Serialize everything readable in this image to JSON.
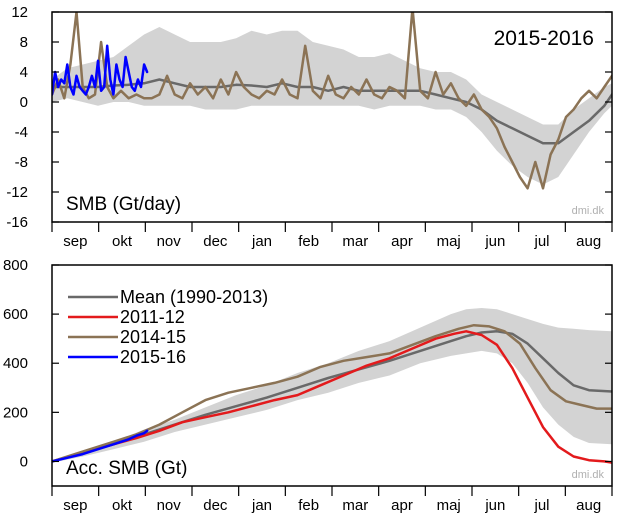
{
  "chart_data": [
    {
      "type": "line",
      "title": "",
      "ylabel": "",
      "xlabel": "",
      "annotation": "SMB (Gt/day)",
      "period_label": "2015-2016",
      "watermark": "dmi.dk",
      "ylim": [
        -16,
        12
      ],
      "yticks": [
        12,
        8,
        4,
        0,
        -4,
        -8,
        -12,
        -16
      ],
      "months": [
        "sep",
        "okt",
        "nov",
        "dec",
        "jan",
        "feb",
        "mar",
        "apr",
        "maj",
        "jun",
        "jul",
        "aug"
      ],
      "x_unit": "day",
      "xlim": [
        0,
        365
      ],
      "band": {
        "name": "",
        "color": "#d3d3d3",
        "x": [
          0,
          10,
          20,
          30,
          40,
          50,
          60,
          70,
          80,
          90,
          100,
          110,
          120,
          130,
          140,
          150,
          160,
          170,
          180,
          190,
          200,
          210,
          220,
          230,
          240,
          250,
          260,
          270,
          280,
          290,
          300,
          310,
          320,
          330,
          340,
          350,
          360,
          365
        ],
        "upper": [
          3.0,
          4.5,
          5.0,
          5.5,
          6.0,
          7.5,
          9.0,
          10.0,
          9.0,
          8.0,
          8.0,
          8.0,
          8.5,
          9.5,
          9.0,
          9.5,
          9.5,
          8.0,
          7.5,
          7.0,
          6.0,
          6.0,
          6.5,
          5.5,
          4.5,
          4.0,
          4.0,
          3.0,
          1.0,
          0.0,
          -1.0,
          -2.0,
          -3.0,
          -3.0,
          -1.0,
          0.5,
          2.0,
          2.5
        ],
        "lower": [
          0.0,
          0.5,
          0.0,
          -0.5,
          0.0,
          0.0,
          -0.5,
          -0.5,
          -0.5,
          -0.5,
          -1.0,
          -1.0,
          -1.0,
          -0.5,
          -0.5,
          -0.5,
          -0.5,
          -0.5,
          -0.5,
          -0.5,
          -0.5,
          -1.0,
          -0.5,
          -0.5,
          -0.5,
          -1.0,
          -1.0,
          -2.0,
          -4.0,
          -6.5,
          -8.5,
          -10.0,
          -11.0,
          -10.0,
          -7.0,
          -4.0,
          -1.5,
          -0.5
        ]
      },
      "series": [
        {
          "name": "",
          "color": "#696969",
          "width": 2.5,
          "x": [
            0,
            10,
            20,
            30,
            40,
            50,
            60,
            70,
            80,
            90,
            100,
            110,
            120,
            130,
            140,
            150,
            160,
            170,
            180,
            190,
            200,
            210,
            220,
            230,
            240,
            250,
            260,
            270,
            280,
            290,
            300,
            310,
            320,
            330,
            340,
            350,
            360,
            365
          ],
          "y": [
            2.0,
            2.0,
            2.0,
            2.0,
            2.2,
            2.3,
            2.5,
            3.0,
            2.5,
            2.0,
            2.0,
            2.0,
            2.3,
            2.2,
            2.0,
            2.5,
            2.0,
            2.0,
            1.5,
            2.0,
            1.5,
            1.5,
            1.5,
            1.5,
            1.5,
            1.0,
            0.5,
            0.0,
            -1.0,
            -2.5,
            -3.5,
            -4.5,
            -5.5,
            -5.5,
            -4.0,
            -2.5,
            -0.5,
            1.0
          ]
        },
        {
          "name": "",
          "color": "#8b7355",
          "width": 2.5,
          "x": [
            0,
            4,
            8,
            12,
            16,
            20,
            24,
            28,
            32,
            36,
            40,
            45,
            50,
            55,
            60,
            65,
            70,
            75,
            80,
            85,
            90,
            95,
            100,
            105,
            110,
            115,
            120,
            125,
            130,
            135,
            140,
            145,
            150,
            155,
            160,
            165,
            170,
            175,
            180,
            185,
            190,
            195,
            200,
            205,
            210,
            215,
            220,
            225,
            230,
            235,
            240,
            245,
            250,
            255,
            260,
            265,
            270,
            275,
            280,
            285,
            290,
            295,
            300,
            305,
            310,
            315,
            320,
            325,
            330,
            335,
            340,
            345,
            350,
            355,
            360,
            365
          ],
          "y": [
            1.0,
            3.0,
            0.5,
            5.0,
            12.0,
            2.0,
            0.5,
            1.0,
            8.0,
            2.0,
            0.5,
            1.5,
            0.5,
            1.0,
            0.5,
            0.5,
            1.0,
            3.5,
            1.0,
            0.5,
            2.5,
            1.0,
            2.0,
            0.5,
            3.0,
            1.0,
            4.0,
            2.0,
            1.0,
            0.5,
            1.5,
            1.0,
            3.0,
            1.0,
            0.5,
            7.5,
            1.5,
            0.5,
            3.5,
            1.0,
            0.5,
            2.0,
            1.0,
            3.0,
            1.0,
            0.5,
            2.0,
            1.5,
            0.5,
            12.5,
            1.5,
            0.5,
            4.0,
            1.0,
            2.5,
            0.5,
            -0.5,
            1.0,
            -1.0,
            -2.0,
            -3.5,
            -6.0,
            -8.0,
            -10.0,
            -11.5,
            -8.0,
            -11.5,
            -7.0,
            -5.0,
            -2.0,
            -1.0,
            0.5,
            1.5,
            0.5,
            2.0,
            3.5
          ]
        },
        {
          "name": "",
          "color": "#0000ff",
          "width": 2.5,
          "x": [
            0,
            2,
            4,
            6,
            8,
            10,
            12,
            14,
            16,
            18,
            20,
            22,
            24,
            26,
            28,
            30,
            32,
            34,
            36,
            38,
            40,
            42,
            44,
            46,
            48,
            50,
            52,
            54,
            56,
            58,
            60,
            62
          ],
          "y": [
            1.0,
            4.0,
            2.0,
            3.0,
            2.5,
            5.0,
            2.0,
            1.0,
            3.5,
            2.0,
            1.5,
            1.0,
            2.0,
            3.5,
            2.0,
            5.5,
            1.5,
            2.0,
            7.5,
            3.0,
            1.0,
            5.0,
            3.0,
            2.0,
            6.0,
            4.0,
            2.0,
            1.5,
            3.0,
            2.0,
            5.0,
            4.0
          ]
        }
      ]
    },
    {
      "type": "line",
      "title": "",
      "ylabel": "",
      "xlabel": "",
      "annotation": "Acc. SMB (Gt)",
      "watermark": "dmi.dk",
      "ylim": [
        -100,
        800
      ],
      "yticks": [
        800,
        600,
        400,
        200,
        0
      ],
      "months": [
        "sep",
        "okt",
        "nov",
        "dec",
        "jan",
        "feb",
        "mar",
        "apr",
        "maj",
        "jun",
        "jul",
        "aug"
      ],
      "x_unit": "day",
      "xlim": [
        0,
        365
      ],
      "legend_position": "top-left",
      "band": {
        "name": "",
        "color": "#d3d3d3",
        "x": [
          0,
          20,
          40,
          60,
          80,
          100,
          120,
          140,
          160,
          180,
          200,
          220,
          240,
          260,
          270,
          280,
          290,
          300,
          310,
          320,
          330,
          340,
          350,
          365
        ],
        "upper": [
          5,
          40,
          80,
          130,
          170,
          220,
          270,
          310,
          360,
          400,
          450,
          490,
          545,
          600,
          620,
          625,
          620,
          600,
          580,
          560,
          545,
          540,
          535,
          530
        ],
        "lower": [
          -5,
          20,
          50,
          80,
          120,
          150,
          180,
          210,
          250,
          280,
          320,
          350,
          400,
          430,
          440,
          450,
          440,
          400,
          320,
          220,
          150,
          100,
          75,
          70
        ]
      },
      "series": [
        {
          "name": "Mean (1990-2013)",
          "color": "#696969",
          "width": 2.5,
          "x": [
            0,
            20,
            40,
            60,
            80,
            100,
            120,
            140,
            160,
            180,
            200,
            220,
            240,
            260,
            270,
            280,
            290,
            300,
            310,
            320,
            330,
            340,
            350,
            365
          ],
          "y": [
            0,
            35,
            70,
            110,
            150,
            190,
            225,
            260,
            300,
            340,
            375,
            410,
            450,
            490,
            510,
            525,
            530,
            520,
            480,
            420,
            360,
            310,
            290,
            285
          ]
        },
        {
          "name": "2011-12",
          "color": "#e31a1c",
          "width": 2.5,
          "x": [
            0,
            20,
            40,
            55,
            70,
            85,
            100,
            115,
            130,
            145,
            160,
            175,
            190,
            205,
            220,
            235,
            250,
            262,
            270,
            280,
            290,
            300,
            310,
            320,
            330,
            340,
            350,
            360,
            365
          ],
          "y": [
            0,
            35,
            70,
            95,
            125,
            160,
            180,
            200,
            225,
            250,
            270,
            310,
            350,
            390,
            420,
            460,
            500,
            520,
            530,
            515,
            475,
            380,
            260,
            140,
            60,
            20,
            5,
            0,
            -5
          ]
        },
        {
          "name": "2014-15",
          "color": "#8b7355",
          "width": 2.5,
          "x": [
            0,
            20,
            40,
            55,
            70,
            85,
            100,
            115,
            130,
            145,
            160,
            175,
            190,
            205,
            220,
            235,
            250,
            265,
            275,
            285,
            295,
            305,
            315,
            325,
            335,
            345,
            355,
            365
          ],
          "y": [
            0,
            40,
            80,
            110,
            150,
            200,
            250,
            280,
            300,
            320,
            345,
            385,
            410,
            425,
            440,
            475,
            510,
            540,
            555,
            550,
            530,
            480,
            380,
            290,
            245,
            230,
            215,
            215
          ]
        },
        {
          "name": "2015-16",
          "color": "#0000ff",
          "width": 2.5,
          "x": [
            0,
            10,
            20,
            30,
            40,
            50,
            55,
            60,
            62
          ],
          "y": [
            0,
            15,
            30,
            50,
            70,
            90,
            105,
            115,
            125
          ]
        }
      ]
    }
  ]
}
